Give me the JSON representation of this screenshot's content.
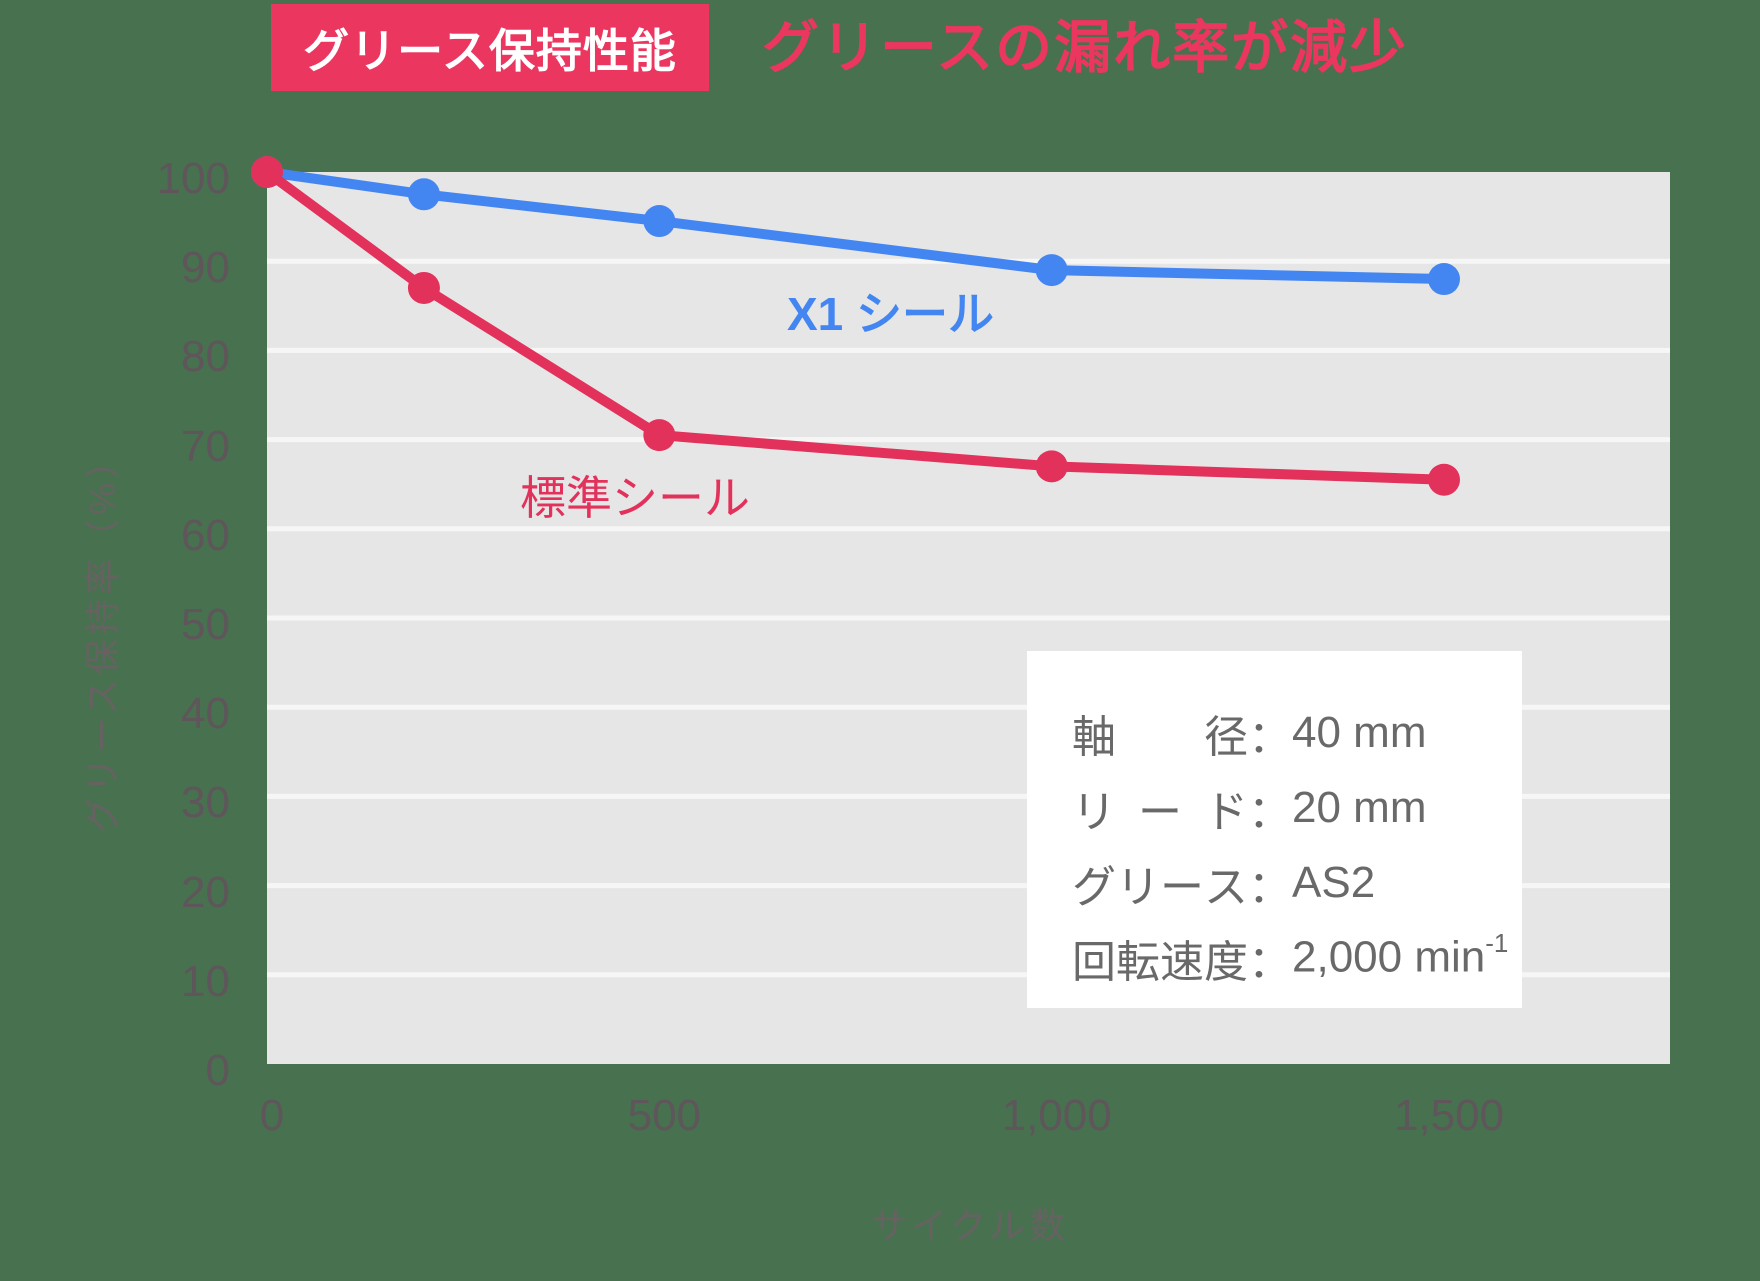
{
  "colors": {
    "background": "#48714F",
    "accent_pink": "#EB3660",
    "plot_background": "#E6E6E6",
    "gridline": "#F8F8F8",
    "tick_label": "#5E565A",
    "axis_title": "#6B6065",
    "spec_text": "#696969"
  },
  "chart_data": {
    "type": "line",
    "title": "グリース保持性能",
    "subtitle": "グリースの漏れ率が減少",
    "xlabel": "サイクル数",
    "ylabel": "グリース保持率（%）",
    "xlim": [
      0,
      1790
    ],
    "ylim": [
      0,
      100
    ],
    "grid": "horizontal",
    "legend": "inline-labels",
    "x_ticks": {
      "values": [
        0,
        500,
        1000,
        1500
      ],
      "labels": [
        "0",
        "500",
        "1,000",
        "1,500"
      ]
    },
    "y_ticks": {
      "values": [
        0,
        10,
        20,
        30,
        40,
        50,
        60,
        70,
        80,
        90,
        100
      ],
      "labels": [
        "0",
        "10",
        "20",
        "30",
        "40",
        "50",
        "60",
        "70",
        "80",
        "90",
        "100"
      ]
    },
    "series": [
      {
        "name": "X1 シール",
        "color": "#4486F1",
        "x": [
          0,
          200,
          500,
          1000,
          1500
        ],
        "y": [
          100,
          97.5,
          94.5,
          89,
          88
        ]
      },
      {
        "name": "標準シール",
        "color": "#E2315A",
        "x": [
          0,
          200,
          500,
          1000,
          1500
        ],
        "y": [
          100,
          87,
          70.5,
          67,
          65.5
        ]
      }
    ]
  },
  "specs_box": {
    "colon": "：",
    "rows": [
      {
        "label": "軸径",
        "value": "40 mm"
      },
      {
        "label": "リード",
        "value": "20 mm"
      },
      {
        "label": "グリース",
        "value": "AS2"
      },
      {
        "label": "回転速度",
        "value": "2,000 min",
        "sup": "-1"
      }
    ]
  }
}
